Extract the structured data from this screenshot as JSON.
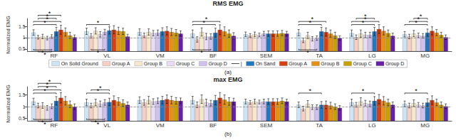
{
  "chart_data": [
    {
      "type": "bar",
      "title": "RMS EMG",
      "y_label": "Normalized EMG",
      "panel_label": "(a)",
      "categories": [
        "RF",
        "VL",
        "VM",
        "BF",
        "SEM",
        "TA",
        "LG",
        "MG"
      ],
      "series": [
        {
          "name": "On Solid Ground",
          "color": "#cce4f5",
          "values": [
            1.23,
            1.28,
            1.25,
            1.18,
            1.15,
            1.22,
            1.2,
            1.15
          ],
          "errors": [
            0.12,
            0.14,
            0.14,
            0.16,
            0.1,
            0.14,
            0.14,
            0.12
          ]
        },
        {
          "name": "Group A",
          "color": "#f5cfc5",
          "values": [
            1.02,
            1.08,
            1.1,
            0.92,
            1.1,
            0.88,
            1.02,
            1.05
          ],
          "errors": [
            0.08,
            0.1,
            0.1,
            0.12,
            0.08,
            0.1,
            0.1,
            0.1
          ]
        },
        {
          "name": "Group B",
          "color": "#f5e8cc",
          "values": [
            1.05,
            1.3,
            1.25,
            1.25,
            1.15,
            1.1,
            1.18,
            1.18
          ],
          "errors": [
            0.1,
            0.14,
            0.14,
            0.18,
            0.1,
            0.14,
            0.16,
            0.14
          ]
        },
        {
          "name": "Group C",
          "color": "#e8ddf5",
          "values": [
            0.98,
            1.15,
            1.2,
            1.05,
            1.12,
            0.95,
            1.12,
            1.1
          ],
          "errors": [
            0.08,
            0.12,
            0.12,
            0.14,
            0.08,
            0.1,
            0.12,
            0.1
          ]
        },
        {
          "name": "Group D",
          "color": "#d0c0ec",
          "values": [
            1.05,
            1.25,
            1.22,
            1.05,
            1.18,
            0.98,
            1.12,
            1.08
          ],
          "errors": [
            0.08,
            0.12,
            0.12,
            0.12,
            0.1,
            0.1,
            0.12,
            0.1
          ]
        },
        {
          "name": "On Sand",
          "color": "#2278c0",
          "values": [
            1.28,
            1.32,
            1.28,
            1.22,
            1.18,
            1.28,
            1.28,
            1.22
          ],
          "errors": [
            0.18,
            0.16,
            0.16,
            0.2,
            0.12,
            0.18,
            0.18,
            0.16
          ]
        },
        {
          "name": "Group A",
          "color": "#d84010",
          "values": [
            1.35,
            1.35,
            1.3,
            1.35,
            1.18,
            1.25,
            1.38,
            1.3
          ],
          "errors": [
            0.2,
            0.18,
            0.18,
            0.22,
            0.12,
            0.18,
            0.2,
            0.18
          ]
        },
        {
          "name": "Group B",
          "color": "#e89010",
          "values": [
            1.25,
            1.3,
            1.25,
            1.28,
            1.18,
            1.18,
            1.3,
            1.22
          ],
          "errors": [
            0.18,
            0.16,
            0.16,
            0.2,
            0.12,
            0.16,
            0.18,
            0.14
          ]
        },
        {
          "name": "Group C",
          "color": "#c8a000",
          "values": [
            1.1,
            1.28,
            1.22,
            1.18,
            1.2,
            1.1,
            1.2,
            1.12
          ],
          "errors": [
            0.14,
            0.14,
            0.14,
            0.16,
            0.12,
            0.14,
            0.14,
            0.12
          ]
        },
        {
          "name": "Group D",
          "color": "#6820a8",
          "values": [
            1.02,
            1.05,
            1.18,
            1.08,
            1.18,
            0.98,
            1.08,
            1.02
          ],
          "errors": [
            0.1,
            0.1,
            0.12,
            0.14,
            0.1,
            0.1,
            0.12,
            0.1
          ]
        }
      ],
      "ylim": [
        0.4,
        1.85
      ],
      "yticks": [
        0.5,
        1,
        1.5
      ],
      "grid": false,
      "reference_line": 1,
      "legend": "bottom",
      "legend_separator": "|",
      "significance": [
        {
          "category": "RF",
          "side": "top",
          "bars": [
            0,
            5
          ],
          "text": "*"
        },
        {
          "category": "RF",
          "side": "top",
          "bars": [
            0,
            6
          ],
          "text": "*"
        },
        {
          "category": "RF",
          "side": "top",
          "bars": [
            1,
            5
          ],
          "text": "*"
        },
        {
          "category": "RF",
          "side": "top",
          "bars": [
            1,
            6
          ],
          "text": "*"
        },
        {
          "category": "RF",
          "side": "bottom",
          "bars": [
            0,
            4
          ],
          "text": "*"
        },
        {
          "category": "RF",
          "side": "bottom",
          "bars": [
            1,
            4
          ],
          "text": "*"
        },
        {
          "category": "VL",
          "side": "top",
          "bars": [
            0,
            5
          ],
          "text": "*"
        },
        {
          "category": "VL",
          "side": "bottom",
          "bars": [
            1,
            4
          ],
          "text": "*"
        },
        {
          "category": "BF",
          "side": "top",
          "bars": [
            0,
            5
          ],
          "text": "*"
        },
        {
          "category": "BF",
          "side": "top",
          "bars": [
            0,
            6
          ],
          "text": "*"
        },
        {
          "category": "BF",
          "side": "bottom",
          "bars": [
            0,
            4
          ],
          "text": "*"
        },
        {
          "category": "TA",
          "side": "top",
          "bars": [
            0,
            5
          ],
          "text": "*"
        },
        {
          "category": "TA",
          "side": "top",
          "bars": [
            0,
            6
          ],
          "text": "*"
        },
        {
          "category": "TA",
          "side": "bottom",
          "bars": [
            0,
            4
          ],
          "text": "*"
        },
        {
          "category": "LG",
          "side": "top",
          "bars": [
            0,
            5
          ],
          "text": "*"
        },
        {
          "category": "LG",
          "side": "top",
          "bars": [
            0,
            6
          ],
          "text": "*"
        },
        {
          "category": "LG",
          "side": "top",
          "bars": [
            1,
            5
          ],
          "text": "*"
        },
        {
          "category": "MG",
          "side": "top",
          "bars": [
            0,
            5
          ],
          "text": "*"
        },
        {
          "category": "MG",
          "side": "top",
          "bars": [
            1,
            5
          ],
          "text": "*"
        },
        {
          "category": "MG",
          "side": "top",
          "bars": [
            2,
            5
          ],
          "text": "*"
        }
      ]
    },
    {
      "type": "bar",
      "title": "max EMG",
      "y_label": "Normalized EMG",
      "panel_label": "(b)",
      "categories": [
        "RF",
        "VL",
        "VM",
        "BF",
        "SEM",
        "TA",
        "LG",
        "MG"
      ],
      "series": [
        {
          "name": "On Solid Ground",
          "color": "#cce4f5",
          "values": [
            1.22,
            1.18,
            1.28,
            1.28,
            1.22,
            1.08,
            1.18,
            1.12
          ],
          "errors": [
            0.14,
            0.14,
            0.14,
            0.16,
            0.1,
            0.12,
            0.14,
            0.12
          ]
        },
        {
          "name": "Group A",
          "color": "#f5cfc5",
          "values": [
            1.05,
            1.05,
            1.18,
            1.08,
            1.18,
            0.92,
            1.08,
            1.05
          ],
          "errors": [
            0.1,
            0.1,
            0.12,
            0.12,
            0.08,
            0.1,
            0.1,
            0.1
          ]
        },
        {
          "name": "Group B",
          "color": "#f5e8cc",
          "values": [
            1.05,
            1.18,
            1.28,
            1.32,
            1.22,
            1.12,
            1.22,
            1.15
          ],
          "errors": [
            0.12,
            0.14,
            0.16,
            0.18,
            0.1,
            0.14,
            0.16,
            0.14
          ]
        },
        {
          "name": "Group C",
          "color": "#e8ddf5",
          "values": [
            0.95,
            1.12,
            1.22,
            1.18,
            1.2,
            0.98,
            1.15,
            1.08
          ],
          "errors": [
            0.1,
            0.12,
            0.12,
            0.14,
            0.08,
            0.1,
            0.12,
            0.1
          ]
        },
        {
          "name": "Group D",
          "color": "#d0c0ec",
          "values": [
            1.02,
            1.18,
            1.25,
            1.15,
            1.22,
            0.98,
            1.12,
            1.05
          ],
          "errors": [
            0.1,
            0.12,
            0.12,
            0.12,
            0.1,
            0.1,
            0.12,
            0.1
          ]
        },
        {
          "name": "On Sand",
          "color": "#2278c0",
          "values": [
            1.25,
            1.2,
            1.28,
            1.28,
            1.22,
            1.08,
            1.25,
            1.18
          ],
          "errors": [
            0.18,
            0.16,
            0.16,
            0.2,
            0.12,
            0.14,
            0.18,
            0.16
          ]
        },
        {
          "name": "Group A",
          "color": "#d84010",
          "values": [
            1.38,
            1.28,
            1.32,
            1.38,
            1.22,
            1.08,
            1.32,
            1.28
          ],
          "errors": [
            0.22,
            0.18,
            0.18,
            0.22,
            0.12,
            0.16,
            0.2,
            0.18
          ]
        },
        {
          "name": "Group B",
          "color": "#e89010",
          "values": [
            1.25,
            1.22,
            1.28,
            1.3,
            1.22,
            1.05,
            1.25,
            1.18
          ],
          "errors": [
            0.18,
            0.16,
            0.16,
            0.2,
            0.12,
            0.14,
            0.18,
            0.14
          ]
        },
        {
          "name": "Group C",
          "color": "#c8a000",
          "values": [
            1.1,
            1.15,
            1.25,
            1.22,
            1.25,
            1.0,
            1.18,
            1.08
          ],
          "errors": [
            0.14,
            0.14,
            0.14,
            0.16,
            0.12,
            0.12,
            0.14,
            0.12
          ]
        },
        {
          "name": "Group D",
          "color": "#6820a8",
          "values": [
            1.0,
            1.08,
            1.25,
            1.22,
            1.22,
            0.95,
            1.08,
            1.02
          ],
          "errors": [
            0.12,
            0.12,
            0.12,
            0.14,
            0.1,
            0.1,
            0.12,
            0.1
          ]
        }
      ],
      "ylim": [
        0.4,
        1.85
      ],
      "yticks": [
        0.5,
        1,
        1.5
      ],
      "grid": false,
      "reference_line": 1,
      "significance": [
        {
          "category": "RF",
          "side": "top",
          "bars": [
            0,
            5
          ],
          "text": "*"
        },
        {
          "category": "RF",
          "side": "top",
          "bars": [
            0,
            6
          ],
          "text": "*"
        },
        {
          "category": "RF",
          "side": "top",
          "bars": [
            1,
            5
          ],
          "text": "*"
        },
        {
          "category": "RF",
          "side": "top",
          "bars": [
            1,
            6
          ],
          "text": "*"
        },
        {
          "category": "RF",
          "side": "bottom",
          "bars": [
            0,
            4
          ],
          "text": "*"
        },
        {
          "category": "RF",
          "side": "bottom",
          "bars": [
            1,
            4
          ],
          "text": "*"
        },
        {
          "category": "VL",
          "side": "top",
          "bars": [
            0,
            5
          ],
          "text": "*"
        },
        {
          "category": "VL",
          "side": "top",
          "bars": [
            1,
            5
          ],
          "text": "*"
        },
        {
          "category": "VL",
          "side": "bottom",
          "bars": [
            0,
            4
          ],
          "text": "*"
        },
        {
          "category": "VL",
          "side": "bottom",
          "bars": [
            1,
            4
          ],
          "text": "*"
        },
        {
          "category": "TA",
          "side": "top",
          "bars": [
            0,
            5
          ],
          "text": "*"
        },
        {
          "category": "LG",
          "side": "top",
          "bars": [
            0,
            5
          ],
          "text": "*"
        },
        {
          "category": "MG",
          "side": "top",
          "bars": [
            0,
            5
          ],
          "text": "*"
        }
      ]
    }
  ]
}
